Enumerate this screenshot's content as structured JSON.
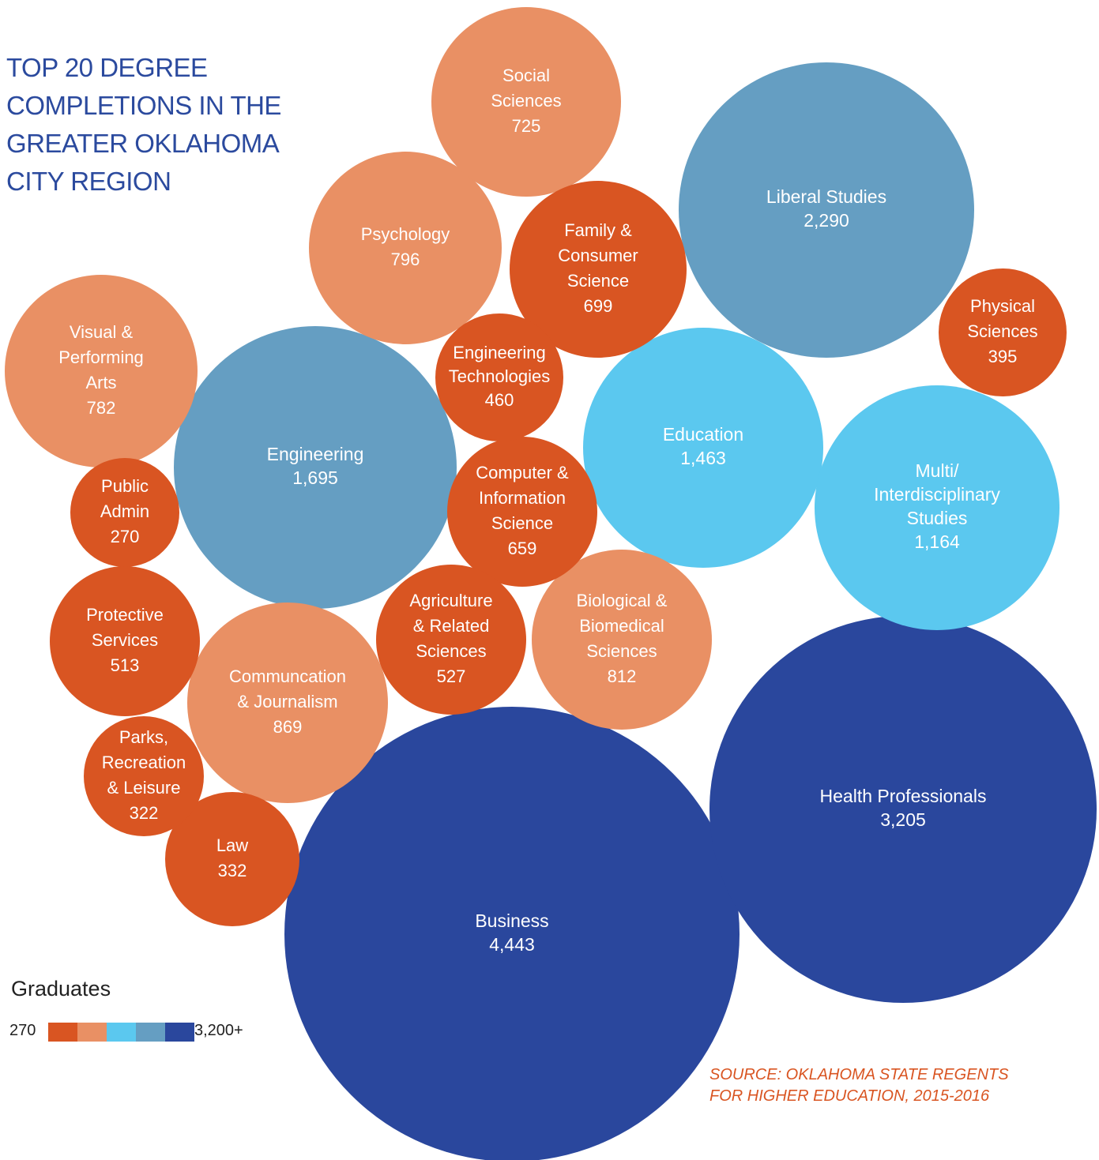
{
  "title_lines": [
    "TOP 20 DEGREE",
    "COMPLETIONS IN THE",
    "GREATER OKLAHOMA",
    "CITY REGION"
  ],
  "legend": {
    "title": "Graduates",
    "min_label": "270",
    "max_label": "3,200+",
    "colors": [
      "#d95522",
      "#e99064",
      "#5bc8ef",
      "#659ec2",
      "#2a479d"
    ]
  },
  "source_lines": [
    "SOURCE: OKLAHOMA STATE REGENTS",
    "FOR HIGHER EDUCATION, 2015-2016"
  ],
  "chart_data": {
    "type": "bubble",
    "size_encodes": "graduates",
    "color_scale": {
      "min": 270,
      "max": "3,200+",
      "colors": [
        "#d95522",
        "#e99064",
        "#5bc8ef",
        "#659ec2",
        "#2a479d"
      ]
    },
    "categories": [
      {
        "lines": [
          "Business"
        ],
        "value": 4443,
        "value_label": "4,443",
        "color": "#2a479d"
      },
      {
        "lines": [
          "Health Professionals"
        ],
        "value": 3205,
        "value_label": "3,205",
        "color": "#2a479d"
      },
      {
        "lines": [
          "Liberal Studies"
        ],
        "value": 2290,
        "value_label": "2,290",
        "color": "#659ec2"
      },
      {
        "lines": [
          "Engineering"
        ],
        "value": 1695,
        "value_label": "1,695",
        "color": "#659ec2"
      },
      {
        "lines": [
          "Education"
        ],
        "value": 1463,
        "value_label": "1,463",
        "color": "#5bc8ef"
      },
      {
        "lines": [
          "Multi/",
          "Interdisciplinary",
          "Studies"
        ],
        "value": 1164,
        "value_label": "1,164",
        "color": "#5bc8ef"
      },
      {
        "lines": [
          "Communcation",
          "& Journalism"
        ],
        "value": 869,
        "value_label": "869",
        "color": "#e99064"
      },
      {
        "lines": [
          "Biological &",
          "Biomedical",
          "Sciences"
        ],
        "value": 812,
        "value_label": "812",
        "color": "#e99064"
      },
      {
        "lines": [
          "Psychology"
        ],
        "value": 796,
        "value_label": "796",
        "color": "#e99064"
      },
      {
        "lines": [
          "Visual &",
          "Performing",
          "Arts"
        ],
        "value": 782,
        "value_label": "782",
        "color": "#e99064"
      },
      {
        "lines": [
          "Social",
          "Sciences"
        ],
        "value": 725,
        "value_label": "725",
        "color": "#e99064"
      },
      {
        "lines": [
          "Family &",
          "Consumer",
          "Science"
        ],
        "value": 699,
        "value_label": "699",
        "color": "#d95522"
      },
      {
        "lines": [
          "Computer &",
          "Information",
          "Science"
        ],
        "value": 659,
        "value_label": "659",
        "color": "#d95522"
      },
      {
        "lines": [
          "Agriculture",
          "& Related",
          "Sciences"
        ],
        "value": 527,
        "value_label": "527",
        "color": "#d95522"
      },
      {
        "lines": [
          "Protective",
          "Services"
        ],
        "value": 513,
        "value_label": "513",
        "color": "#d95522"
      },
      {
        "lines": [
          "Engineering",
          "Technologies"
        ],
        "value": 460,
        "value_label": "460",
        "color": "#d95522"
      },
      {
        "lines": [
          "Physical",
          "Sciences"
        ],
        "value": 395,
        "value_label": "395",
        "color": "#d95522"
      },
      {
        "lines": [
          "Law"
        ],
        "value": 332,
        "value_label": "332",
        "color": "#d95522"
      },
      {
        "lines": [
          "Parks,",
          "Recreation",
          "& Leisure"
        ],
        "value": 322,
        "value_label": "322",
        "color": "#d95522"
      },
      {
        "lines": [
          "Public",
          "Admin"
        ],
        "value": 270,
        "value_label": "270",
        "color": "#d95522"
      }
    ]
  }
}
